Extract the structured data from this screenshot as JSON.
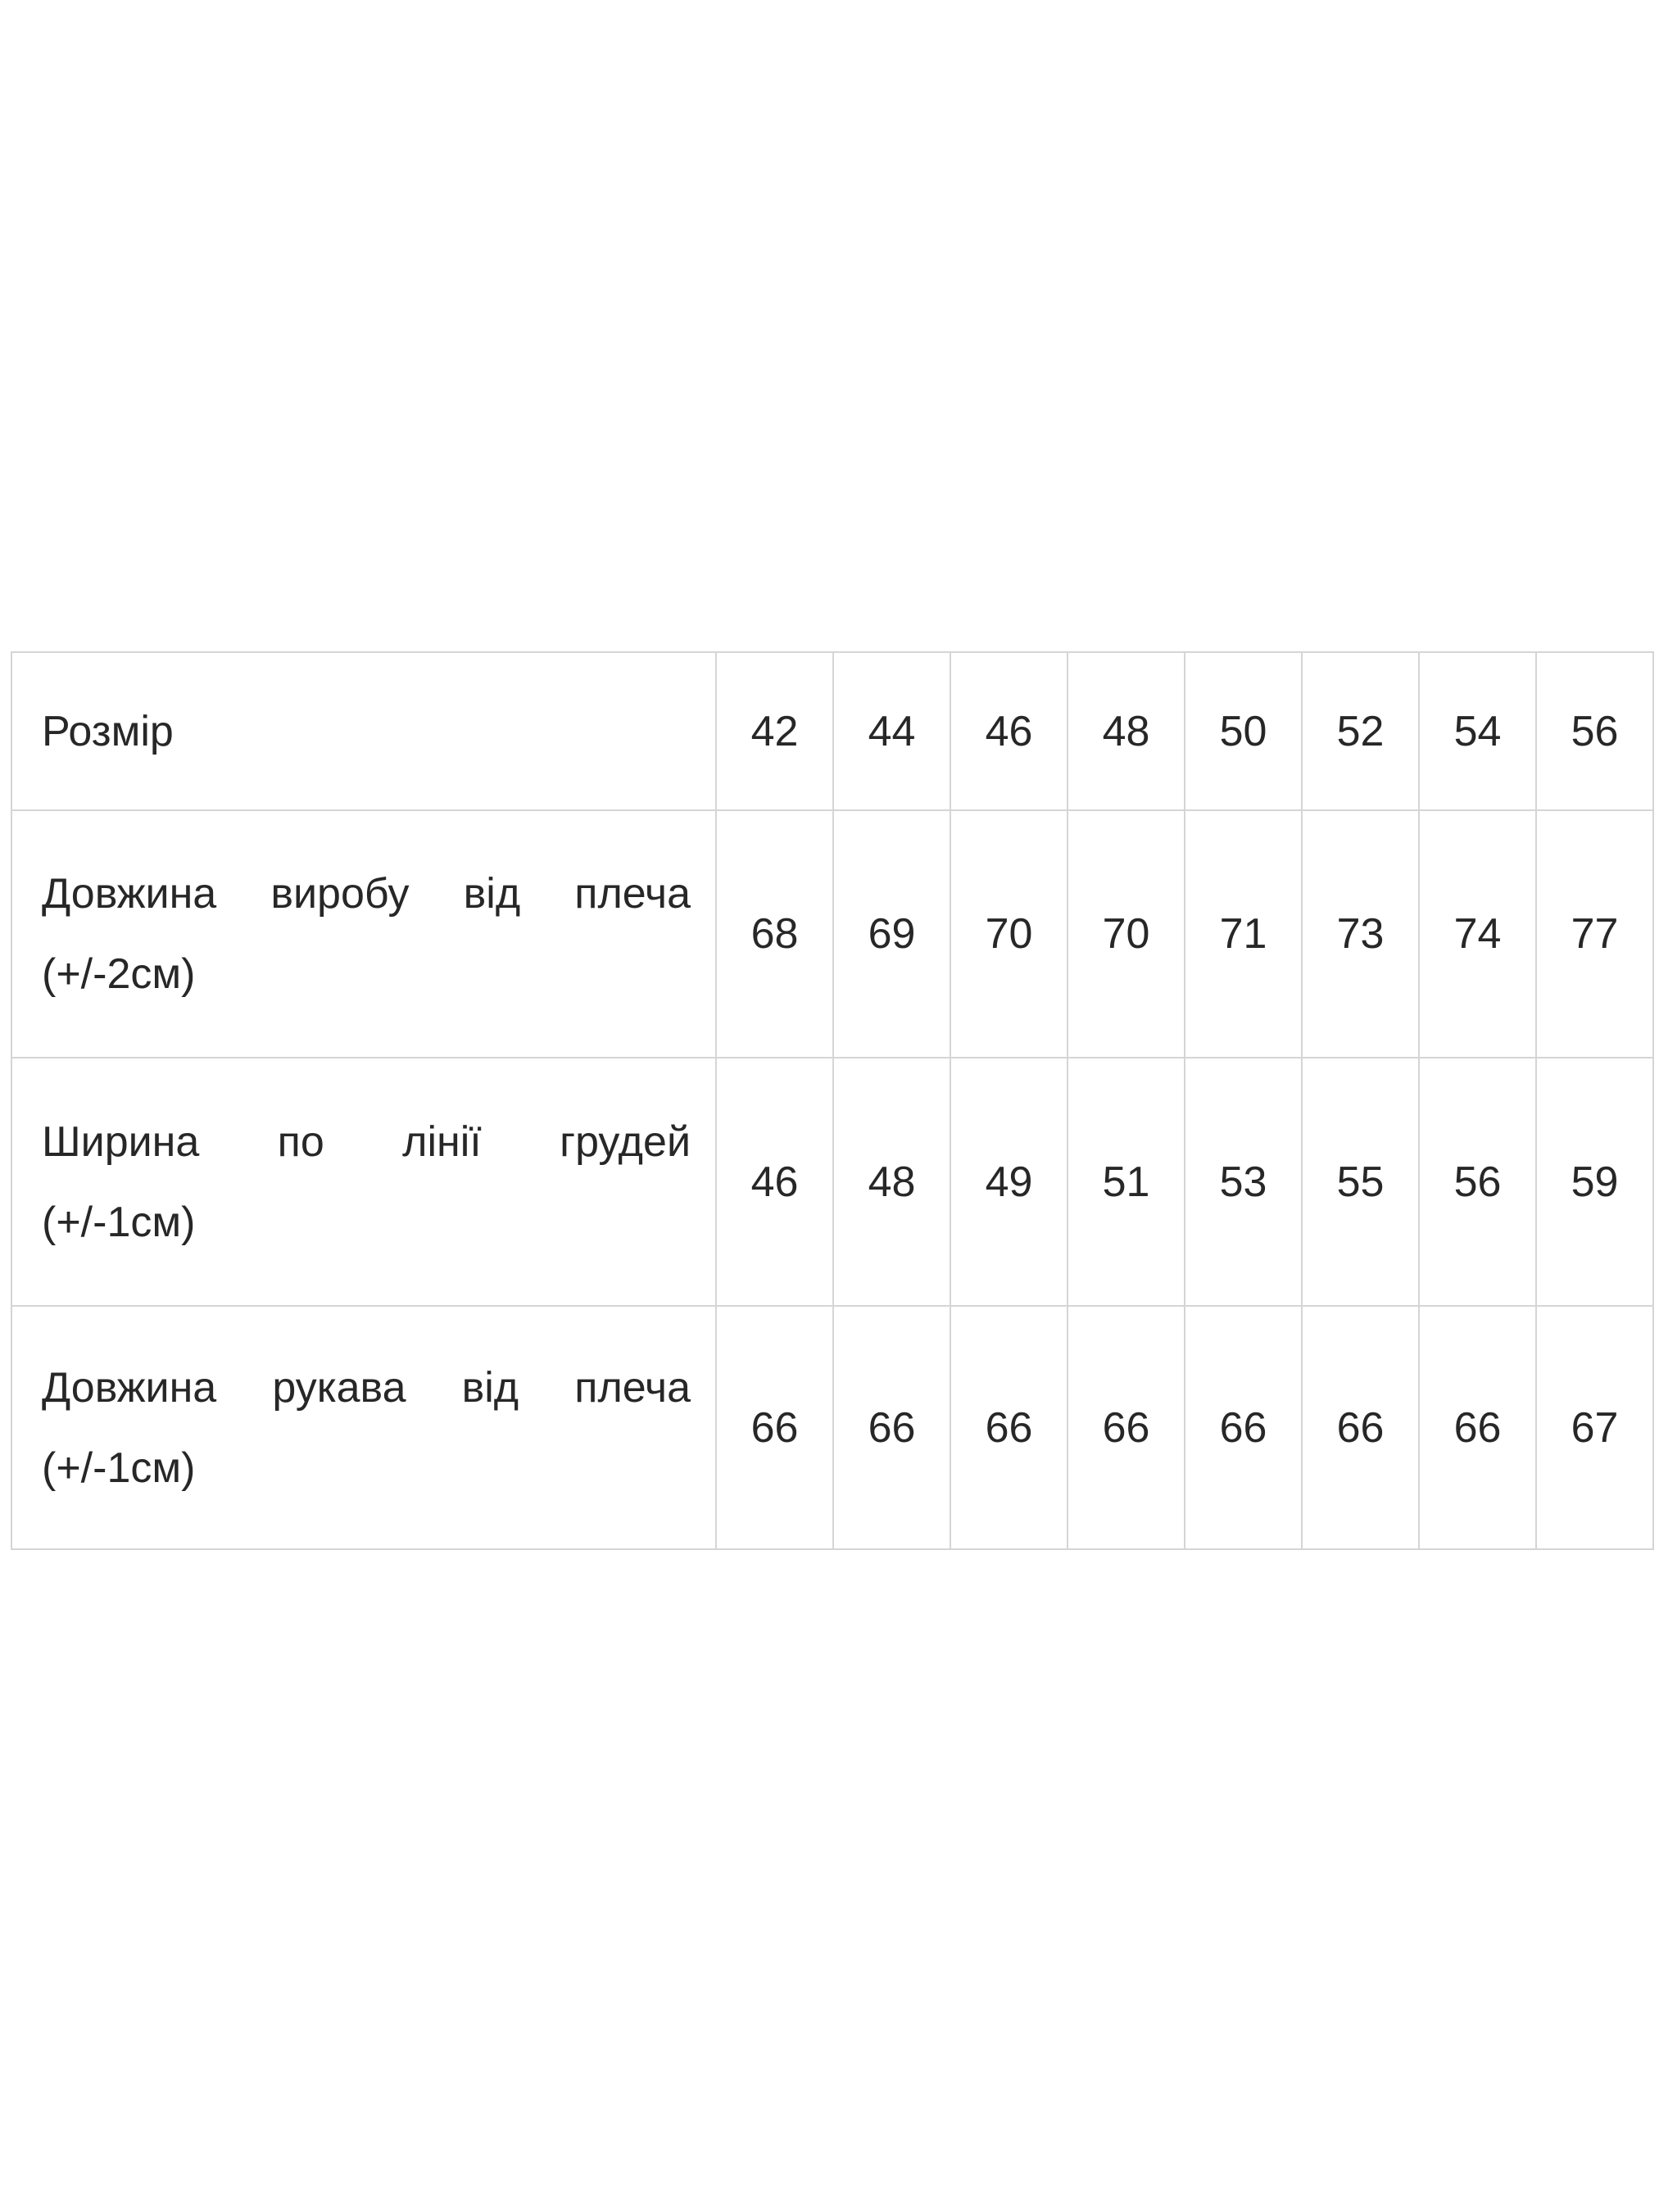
{
  "colors": {
    "background": "#ffffff",
    "table_border": "#d5d5d5",
    "text": "#272727"
  },
  "table": {
    "header": {
      "label": "Розмір",
      "sizes": [
        "42",
        "44",
        "46",
        "48",
        "50",
        "52",
        "54",
        "56"
      ]
    },
    "rows": [
      {
        "line1": "Довжина виробу від плеча",
        "line2": "(+/-2см)",
        "values": [
          "68",
          "69",
          "70",
          "70",
          "71",
          "73",
          "74",
          "77"
        ]
      },
      {
        "line1": "Ширина по лінії грудей",
        "line2": "(+/-1см)",
        "values": [
          "46",
          "48",
          "49",
          "51",
          "53",
          "55",
          "56",
          "59"
        ]
      },
      {
        "line1": "Довжина рукава від плеча",
        "line2": "(+/-1см)",
        "values": [
          "66",
          "66",
          "66",
          "66",
          "66",
          "66",
          "66",
          "67"
        ]
      }
    ]
  },
  "chart_data": {
    "type": "table",
    "title": "",
    "columns": [
      "Розмір",
      "42",
      "44",
      "46",
      "48",
      "50",
      "52",
      "54",
      "56"
    ],
    "rows": [
      {
        "label": "Довжина виробу від плеча (+/-2см)",
        "values": [
          68,
          69,
          70,
          70,
          71,
          73,
          74,
          77
        ]
      },
      {
        "label": "Ширина по лінії грудей (+/-1см)",
        "values": [
          46,
          48,
          49,
          51,
          53,
          55,
          56,
          59
        ]
      },
      {
        "label": "Довжина рукава від плеча (+/-1см)",
        "values": [
          66,
          66,
          66,
          66,
          66,
          66,
          66,
          67
        ]
      }
    ],
    "layout": {
      "grid": "on",
      "label_column_align": "justify",
      "value_columns_align": "center"
    }
  }
}
